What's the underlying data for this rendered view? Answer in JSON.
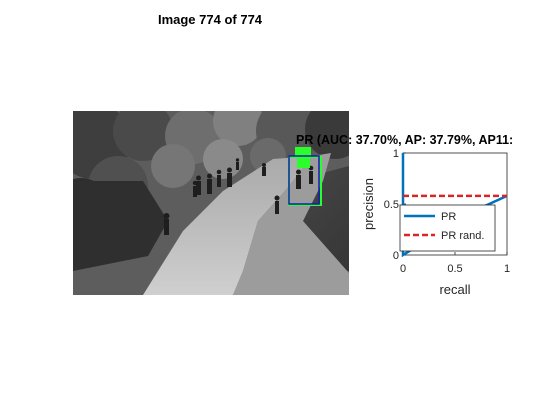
{
  "figure": {
    "title": "Image 774 of 774"
  },
  "detections": [
    {
      "kind": "ground-truth",
      "color": "#2bff2b"
    },
    {
      "kind": "prediction",
      "color": "#1a1ab8"
    }
  ],
  "chart_data": {
    "type": "line",
    "title": "PR (AUC: 37.70%, AP: 37.79%, AP11:",
    "xlabel": "recall",
    "ylabel": "precision",
    "xlim": [
      0,
      1
    ],
    "ylim": [
      0,
      1
    ],
    "xticks": [
      "0",
      "0.5",
      "1"
    ],
    "yticks": [
      "0",
      "0.5",
      "1"
    ],
    "grid": false,
    "legend_position": "bottom-right",
    "series": [
      {
        "name": "PR",
        "color": "#0072bd",
        "style": "solid",
        "x": [
          0,
          0,
          0,
          0.7,
          1.0
        ],
        "y": [
          1.0,
          0.56,
          0.0,
          0.44,
          0.58
        ]
      },
      {
        "name": "PR rand.",
        "color": "#d62728",
        "style": "dashed",
        "x": [
          0,
          1
        ],
        "y": [
          0.58,
          0.58
        ]
      }
    ]
  }
}
